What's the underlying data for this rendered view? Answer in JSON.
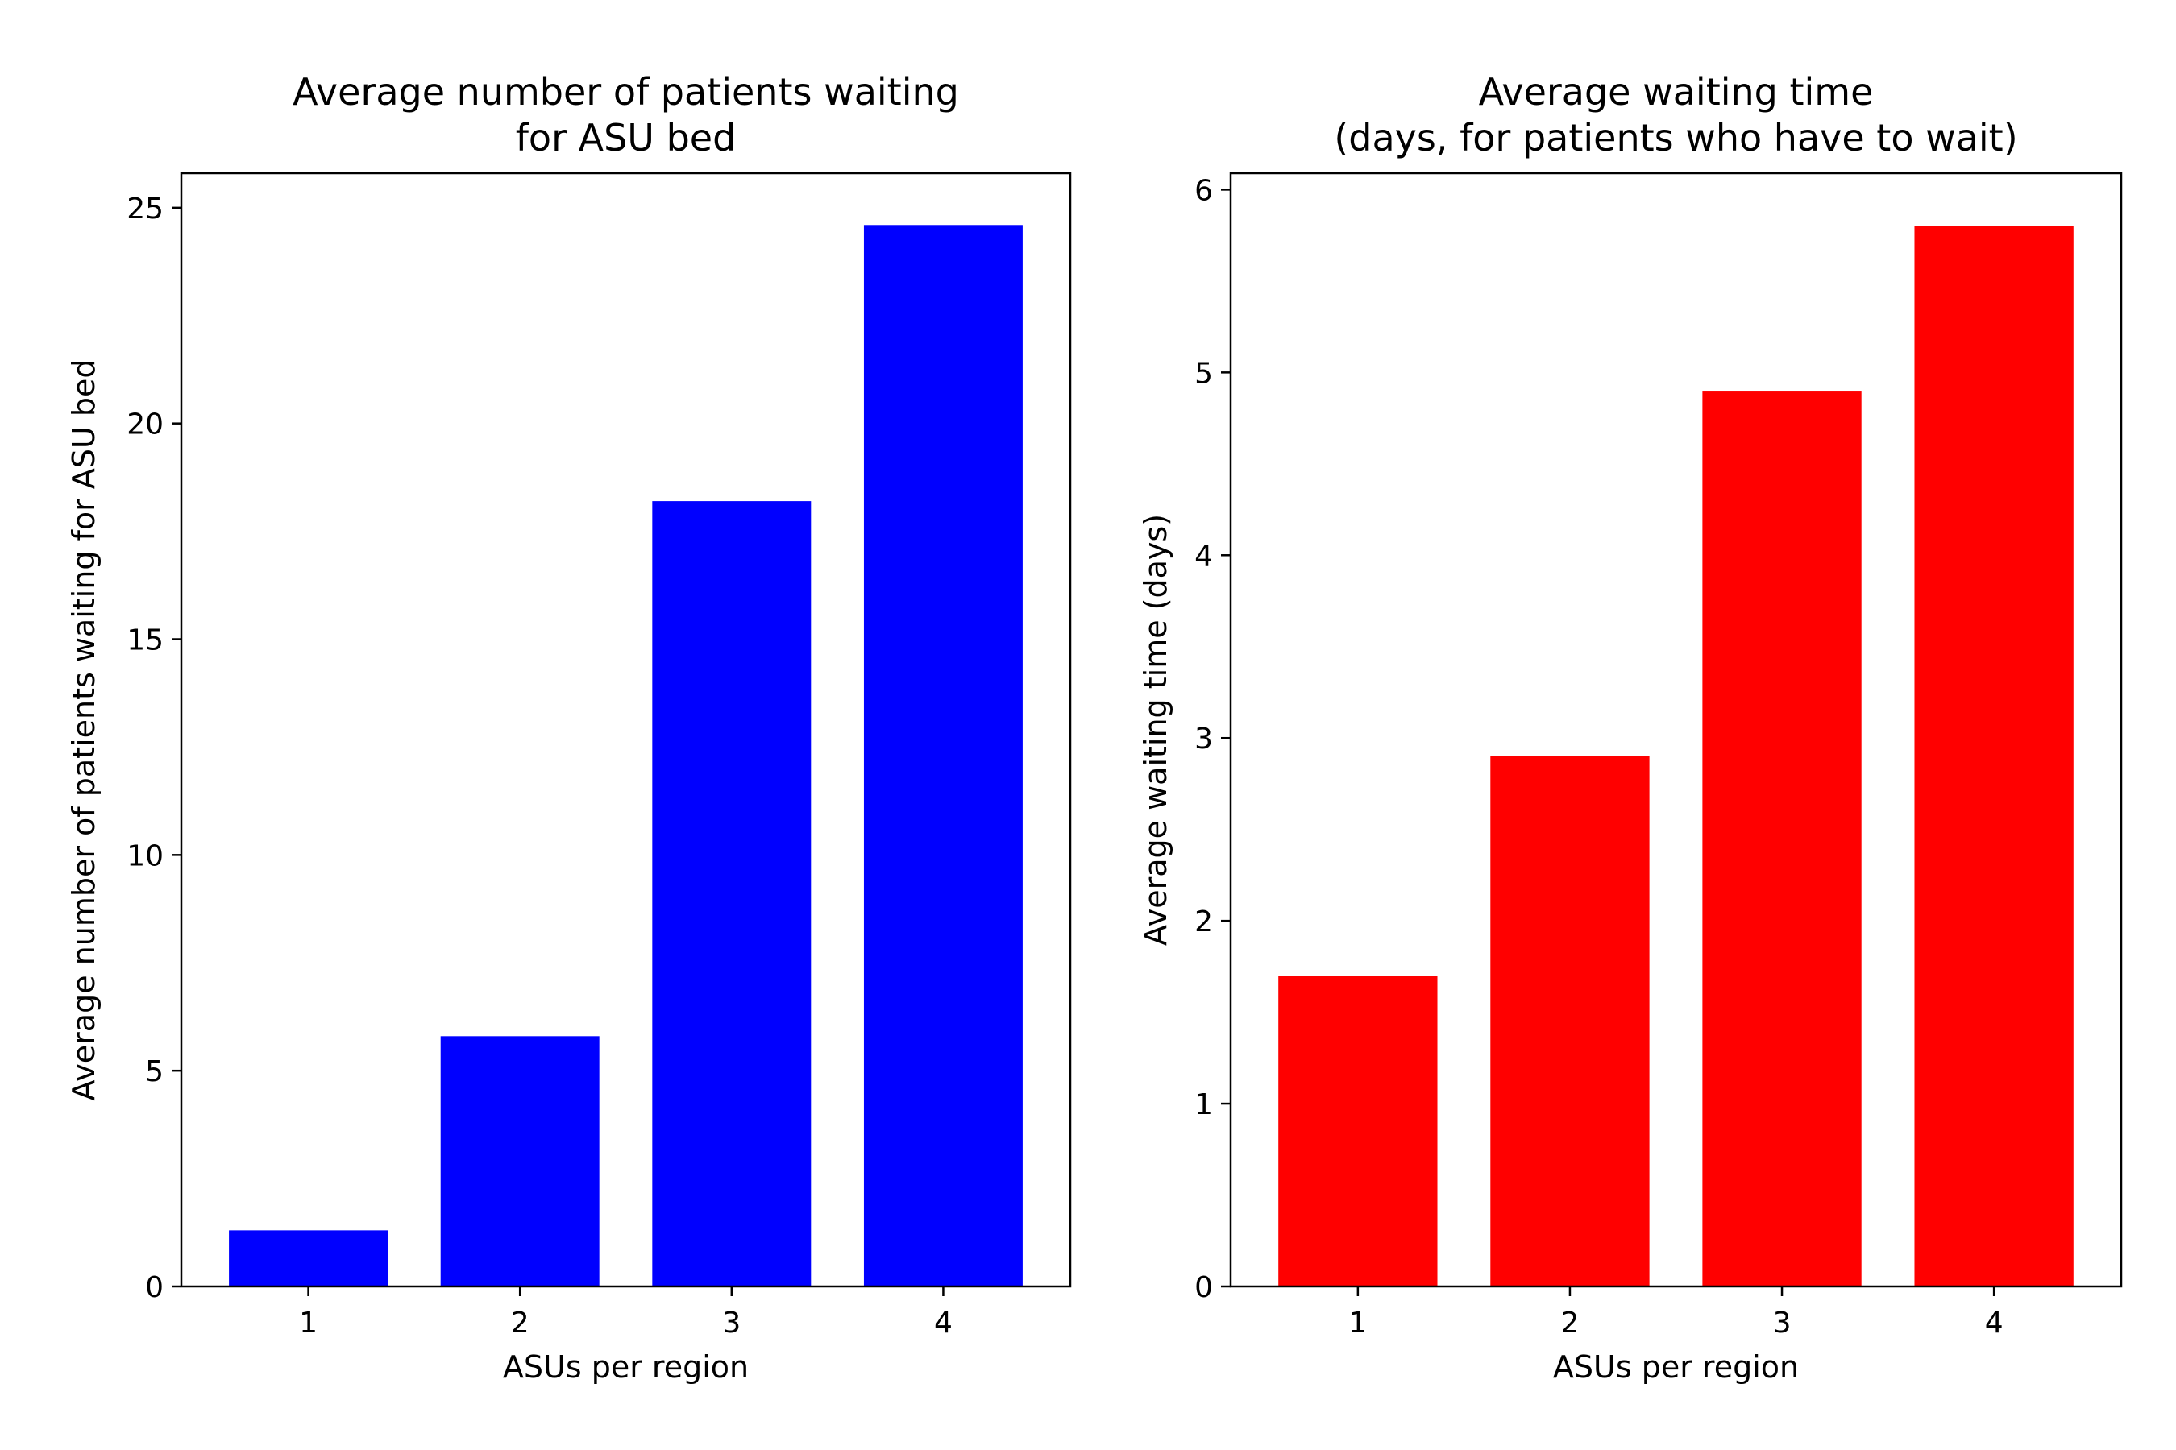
{
  "chart_data": [
    {
      "type": "bar",
      "title": "Average number of patients waiting\nfor ASU bed",
      "xlabel": "ASUs per region",
      "ylabel": "Average number of patients waiting for ASU bed",
      "categories": [
        "1",
        "2",
        "3",
        "4"
      ],
      "values": [
        1.3,
        5.8,
        18.2,
        24.6
      ],
      "ylim": [
        0,
        25.8
      ],
      "yticks": [
        0,
        5,
        10,
        15,
        20,
        25
      ],
      "color": "#0000ff",
      "grid": false
    },
    {
      "type": "bar",
      "title": "Average waiting time\n(days, for patients who have to wait)",
      "xlabel": "ASUs per region",
      "ylabel": "Average waiting time (days)",
      "categories": [
        "1",
        "2",
        "3",
        "4"
      ],
      "values": [
        1.7,
        2.9,
        4.9,
        5.8
      ],
      "ylim": [
        0,
        6.09
      ],
      "yticks": [
        0,
        1,
        2,
        3,
        4,
        5,
        6
      ],
      "color": "#ff0000",
      "grid": false
    }
  ]
}
